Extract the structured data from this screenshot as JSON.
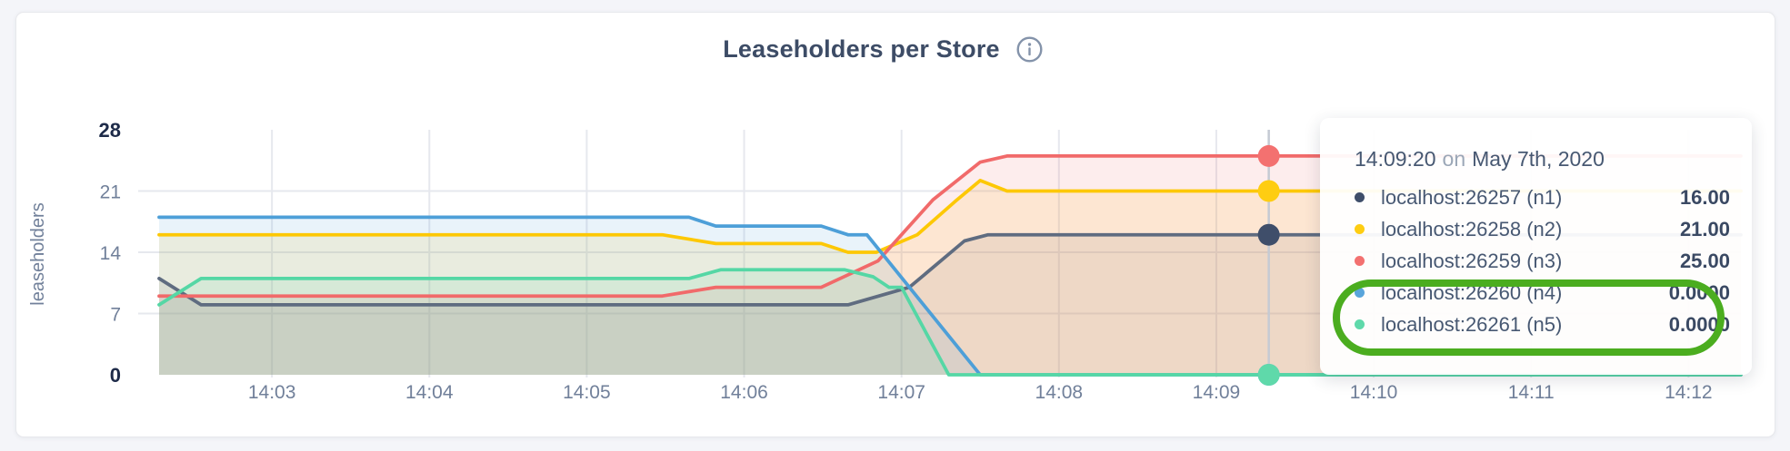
{
  "header": {
    "title": "Leaseholders per Store"
  },
  "chart_data": {
    "type": "area",
    "title": "Leaseholders per Store",
    "xlabel": "",
    "ylabel": "leaseholders",
    "x_domain_minutes": [
      142.283,
      152.333
    ],
    "y_domain": [
      0,
      28
    ],
    "grid": true,
    "legend_position": "hover-tooltip",
    "x_ticks": [
      {
        "m": 143,
        "label": "14:03"
      },
      {
        "m": 144,
        "label": "14:04"
      },
      {
        "m": 145,
        "label": "14:05"
      },
      {
        "m": 146,
        "label": "14:06"
      },
      {
        "m": 147,
        "label": "14:07"
      },
      {
        "m": 148,
        "label": "14:08"
      },
      {
        "m": 149,
        "label": "14:09"
      },
      {
        "m": 150,
        "label": "14:10"
      },
      {
        "m": 151,
        "label": "14:11"
      },
      {
        "m": 152,
        "label": "14:12"
      }
    ],
    "y_ticks": [
      {
        "v": 0,
        "label": "0",
        "bold": true
      },
      {
        "v": 7,
        "label": "7",
        "bold": false
      },
      {
        "v": 14,
        "label": "14",
        "bold": false
      },
      {
        "v": 21,
        "label": "21",
        "bold": false
      },
      {
        "v": 28,
        "label": "28",
        "bold": true
      }
    ],
    "series": [
      {
        "name": "localhost:26257 (n1)",
        "color": "#5f6c80",
        "dot_color": "#3f4e6a",
        "fill_opacity": 0.12,
        "points": [
          [
            142.283,
            11
          ],
          [
            142.55,
            8
          ],
          [
            146.66,
            8
          ],
          [
            147.05,
            10
          ],
          [
            147.4,
            15.3
          ],
          [
            147.55,
            16
          ],
          [
            152.333,
            16
          ]
        ]
      },
      {
        "name": "localhost:26258 (n2)",
        "color": "#fdc805",
        "dot_color": "#fecd12",
        "fill_opacity": 0.12,
        "points": [
          [
            142.283,
            16
          ],
          [
            145.48,
            16
          ],
          [
            145.82,
            15
          ],
          [
            146.49,
            15
          ],
          [
            146.66,
            14
          ],
          [
            146.84,
            14
          ],
          [
            147.1,
            16
          ],
          [
            147.34,
            19.8
          ],
          [
            147.5,
            22.2
          ],
          [
            147.67,
            21
          ],
          [
            152.333,
            21
          ]
        ]
      },
      {
        "name": "localhost:26259 (n3)",
        "color": "#f16a6a",
        "dot_color": "#f37170",
        "fill_opacity": 0.12,
        "points": [
          [
            142.283,
            9
          ],
          [
            145.48,
            9
          ],
          [
            145.82,
            10
          ],
          [
            146.49,
            10
          ],
          [
            146.85,
            13
          ],
          [
            147.2,
            20
          ],
          [
            147.5,
            24.3
          ],
          [
            147.67,
            25
          ],
          [
            152.333,
            25
          ]
        ]
      },
      {
        "name": "localhost:26260 (n4)",
        "color": "#4d9fd8",
        "dot_color": "#59a5db",
        "fill_opacity": 0.12,
        "points": [
          [
            142.283,
            18
          ],
          [
            145.65,
            18
          ],
          [
            145.82,
            17
          ],
          [
            146.49,
            17
          ],
          [
            146.66,
            16
          ],
          [
            146.78,
            16
          ],
          [
            147.5,
            0
          ],
          [
            152.333,
            0
          ]
        ]
      },
      {
        "name": "localhost:26261 (n5)",
        "color": "#55d7a5",
        "dot_color": "#5fd9aa",
        "fill_opacity": 0.12,
        "points": [
          [
            142.283,
            8
          ],
          [
            142.55,
            11
          ],
          [
            145.65,
            11
          ],
          [
            145.85,
            12
          ],
          [
            146.64,
            12
          ],
          [
            146.82,
            11.2
          ],
          [
            146.92,
            10
          ],
          [
            147.0,
            10
          ],
          [
            147.3,
            0
          ],
          [
            152.333,
            0
          ]
        ]
      }
    ],
    "hover": {
      "time_minutes": 149.3333,
      "time_label": "14:09:20",
      "values": [
        16,
        21,
        25,
        0,
        0
      ]
    }
  },
  "tooltip": {
    "time": "14:09:20",
    "conjunction": "on",
    "date": "May 7th, 2020",
    "rows": [
      {
        "label": "localhost:26257 (n1)",
        "value": "16.00"
      },
      {
        "label": "localhost:26258 (n2)",
        "value": "21.00"
      },
      {
        "label": "localhost:26259 (n3)",
        "value": "25.00"
      },
      {
        "label": "localhost:26260 (n4)",
        "value": "0.0000"
      },
      {
        "label": "localhost:26261 (n5)",
        "value": "0.0000"
      }
    ]
  },
  "annotation": {
    "shape": "green-circle",
    "color": "#4bad1f",
    "highlights": "n4 and n5 zero values"
  }
}
